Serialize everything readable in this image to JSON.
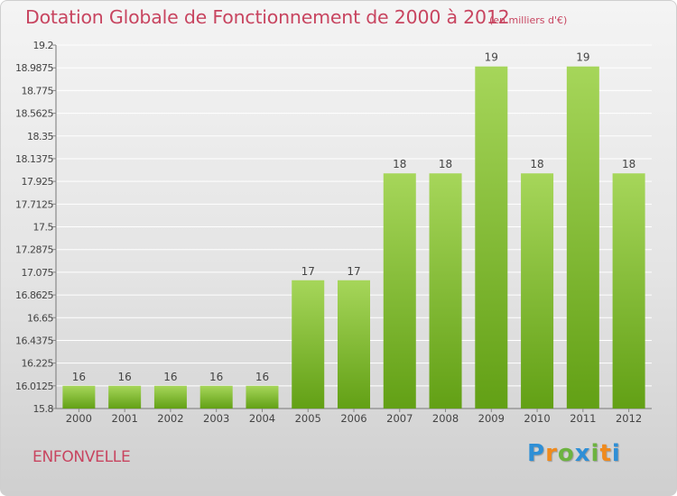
{
  "title": "Dotation Globale de Fonctionnement de 2000 à 2012",
  "subtitle": "(en milliers d'€)",
  "commune": "ENFONVELLE",
  "brand": {
    "text": "Proxiti",
    "letter_colors": [
      "#2e8fd6",
      "#f08a1c",
      "#6cb33f",
      "#2e8fd6",
      "#6cb33f",
      "#f08a1c",
      "#2e8fd6"
    ]
  },
  "colors": {
    "title": "#c84560",
    "bar_light": "#a6d65a",
    "bar_dark": "#62a015",
    "grid": "#ffffff",
    "text": "#444444"
  },
  "chart_data": {
    "type": "bar",
    "categories": [
      "2000",
      "2001",
      "2002",
      "2003",
      "2004",
      "2005",
      "2006",
      "2007",
      "2008",
      "2009",
      "2010",
      "2011",
      "2012"
    ],
    "values": [
      16,
      16,
      16,
      16,
      16,
      17,
      17,
      18,
      18,
      19,
      18,
      19,
      18
    ],
    "bar_tops": [
      16.0125,
      16.0125,
      16.0125,
      16.0125,
      16.0125,
      17.0,
      17.0,
      18.0,
      18.0,
      19.0,
      18.0,
      19.0,
      18.0
    ],
    "data_labels": [
      "16",
      "16",
      "16",
      "16",
      "16",
      "17",
      "17",
      "18",
      "18",
      "19",
      "18",
      "19",
      "18"
    ],
    "ylim": [
      15.8,
      19.2
    ],
    "yticks": [
      15.8,
      16.0125,
      16.225,
      16.4375,
      16.65,
      16.8625,
      17.075,
      17.2875,
      17.5,
      17.7125,
      17.925,
      18.1375,
      18.35,
      18.5625,
      18.775,
      18.9875,
      19.2
    ],
    "ytick_labels": [
      "15.8",
      "16.0125",
      "16.225",
      "16.4375",
      "16.65",
      "16.8625",
      "17.075",
      "17.2875",
      "17.5",
      "17.7125",
      "17.925",
      "18.1375",
      "18.35",
      "18.5625",
      "18.775",
      "18.9875",
      "19.2"
    ],
    "grid": true,
    "xlabel": "",
    "ylabel": ""
  }
}
